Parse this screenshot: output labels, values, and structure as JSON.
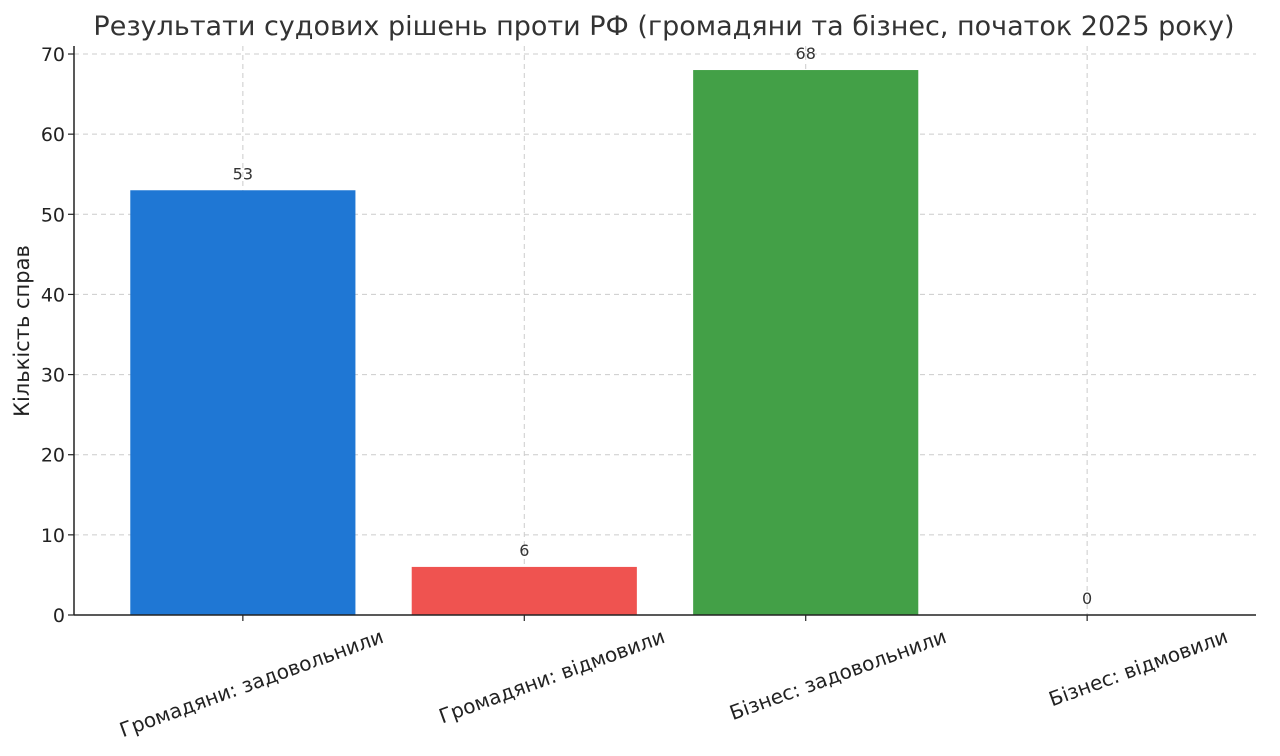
{
  "chart_data": {
    "type": "bar",
    "title": "Результати судових рішень проти РФ (громадяни та бізнес, початок 2025 року)",
    "xlabel": "",
    "ylabel": "Кількість справ",
    "categories": [
      "Громадяни: задовольнили",
      "Громадяни: відмовили",
      "Бізнес: задовольнили",
      "Бізнес: відмовили"
    ],
    "values": [
      53,
      6,
      68,
      0
    ],
    "colors": [
      "#1f77d4",
      "#ef5350",
      "#43a047",
      "#1f77d4"
    ],
    "ylim": [
      0,
      71
    ],
    "yticks": [
      0,
      10,
      20,
      30,
      40,
      50,
      60,
      70
    ],
    "grid": true
  }
}
